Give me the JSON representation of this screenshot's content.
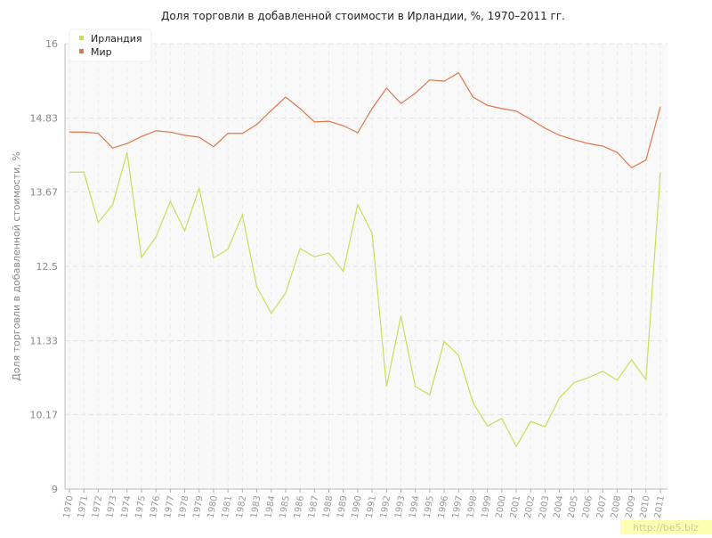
{
  "chart_data": {
    "type": "line",
    "title": "Доля торговли в добавленной стоимости в Ирландии, %, 1970–2011 гг.",
    "y_label": "Доля торговли в добавленной стоимости, %",
    "watermark": "http://be5.biz",
    "categories": [
      "1970",
      "1971",
      "1972",
      "1973",
      "1974",
      "1975",
      "1976",
      "1977",
      "1978",
      "1979",
      "1980",
      "1981",
      "1982",
      "1983",
      "1984",
      "1985",
      "1986",
      "1987",
      "1988",
      "1989",
      "1990",
      "1991",
      "1992",
      "1993",
      "1994",
      "1995",
      "1996",
      "1997",
      "1998",
      "1999",
      "2000",
      "2001",
      "2002",
      "2003",
      "2004",
      "2005",
      "2006",
      "2007",
      "2008",
      "2009",
      "2010",
      "2011"
    ],
    "series": [
      {
        "name": "Ирландия",
        "color": "#c3e05a",
        "values": [
          13.98,
          13.98,
          13.19,
          13.47,
          14.29,
          12.64,
          12.96,
          13.52,
          13.06,
          13.73,
          12.63,
          12.77,
          13.31,
          12.18,
          11.76,
          12.08,
          12.78,
          12.65,
          12.71,
          12.42,
          13.47,
          13.02,
          10.61,
          11.72,
          10.61,
          10.48,
          11.32,
          11.1,
          10.36,
          9.99,
          10.11,
          9.67,
          10.06,
          9.98,
          10.43,
          10.67,
          10.75,
          10.85,
          10.71,
          11.03,
          10.72,
          13.98
        ]
      },
      {
        "name": "Мир",
        "color": "#e0764a",
        "values": [
          14.61,
          14.61,
          14.59,
          14.36,
          14.43,
          14.54,
          14.63,
          14.61,
          14.56,
          14.53,
          14.38,
          14.59,
          14.59,
          14.73,
          14.95,
          15.16,
          14.98,
          14.77,
          14.78,
          14.71,
          14.6,
          14.98,
          15.3,
          15.06,
          15.22,
          15.43,
          15.41,
          15.54,
          15.16,
          15.03,
          14.98,
          14.94,
          14.81,
          14.67,
          14.56,
          14.49,
          14.43,
          14.39,
          14.29,
          14.05,
          14.17,
          15.01
        ]
      }
    ],
    "ylim": [
      9,
      16
    ],
    "yticks": [
      9,
      10.17,
      11.33,
      12.5,
      13.67,
      14.83,
      16
    ],
    "grid": true,
    "legend": "top-left"
  }
}
